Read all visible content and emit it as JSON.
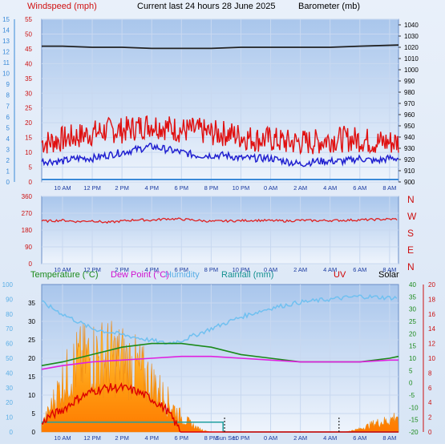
{
  "header": {
    "wind_label": "Windspeed (mph)",
    "title": "Current last 24 hours 28 June 2025",
    "baro_label": "Barometer (mb)"
  },
  "panel3_labels": {
    "temperature": "Temperature (°C)",
    "dew_point": "Dew Point (°C)",
    "humidity": "Humidity",
    "rainfall": "Rainfall (mm)",
    "uv": "UV",
    "solar": "Solar"
  },
  "colors": {
    "wind": "#e01010",
    "wind_avg": "#2020d0",
    "barometer": "#202020",
    "direction": "#e02020",
    "temperature": "#1a8a1a",
    "dew_point": "#e020e0",
    "humidity": "#70c0f0",
    "rainfall": "#20a0a0",
    "uv": "#dd0000",
    "solar": "#f0a020"
  },
  "x_tick_labels": [
    "10 AM",
    "12 PM",
    "2 PM",
    "4 PM",
    "6 PM",
    "8 PM",
    "10 PM",
    "0 AM",
    "2 AM",
    "4 AM",
    "6 AM",
    "8 AM"
  ],
  "sunset_label": "Sun Set",
  "chart_data": [
    {
      "type": "line",
      "panel": "wind-barometer",
      "x_range_hours": [
        8.6,
        32.6
      ],
      "y_left": {
        "label": "Windspeed (mph)",
        "range": [
          0,
          55
        ],
        "ticks": [
          0,
          5,
          10,
          15,
          20,
          25,
          30,
          35,
          40,
          45,
          50,
          55
        ]
      },
      "y_left_beaufort": {
        "range": [
          0,
          15
        ],
        "ticks": [
          0,
          1,
          2,
          3,
          4,
          5,
          6,
          7,
          8,
          9,
          10,
          11,
          12,
          13,
          14,
          15
        ]
      },
      "y_right": {
        "label": "Barometer (mb)",
        "range": [
          900,
          1045
        ],
        "ticks": [
          900,
          910,
          920,
          930,
          940,
          950,
          960,
          970,
          980,
          990,
          1000,
          1010,
          1020,
          1030,
          1040
        ]
      },
      "series": [
        {
          "name": "Windspeed (mph)",
          "axis": "left",
          "x": [
            9,
            10,
            11,
            12,
            13,
            14,
            15,
            16,
            17,
            18,
            19,
            20,
            21,
            22,
            23,
            24,
            25,
            26,
            27,
            28,
            29,
            30,
            31,
            32
          ],
          "values": [
            13,
            14,
            15,
            16,
            17,
            17,
            18,
            19,
            18,
            17,
            17,
            16,
            16,
            15,
            14,
            14,
            13,
            13,
            13,
            14,
            14,
            14,
            13,
            13
          ]
        },
        {
          "name": "",
          "axis": "left",
          "x": [
            9,
            10,
            11,
            12,
            13,
            14,
            15,
            16,
            17,
            18,
            19,
            20,
            21,
            22,
            23,
            24,
            25,
            26,
            27,
            28,
            29,
            30,
            31,
            32
          ],
          "values": [
            7,
            7,
            8,
            8,
            9,
            10,
            11,
            12,
            11,
            10,
            9,
            9,
            9,
            8,
            8,
            8,
            7,
            6,
            7,
            7,
            7,
            8,
            7,
            8
          ]
        },
        {
          "name": "Barometer (mb)",
          "axis": "right",
          "x": [
            8.6,
            10,
            12,
            14,
            16,
            18,
            20,
            22,
            24,
            26,
            28,
            30,
            32.6
          ],
          "values": [
            1021,
            1021,
            1020,
            1020,
            1019,
            1019,
            1019,
            1020,
            1020,
            1020,
            1020,
            1021,
            1022
          ]
        }
      ]
    },
    {
      "type": "line",
      "panel": "wind-direction",
      "x_range_hours": [
        8.6,
        32.6
      ],
      "y_left": {
        "range": [
          0,
          360
        ],
        "ticks": [
          0,
          90,
          180,
          270,
          360
        ]
      },
      "y_right_labels": [
        "N",
        "W",
        "S",
        "E",
        "N"
      ],
      "series": [
        {
          "name": "",
          "x": [
            9,
            10,
            11,
            12,
            13,
            14,
            15,
            16,
            17,
            18,
            19,
            20,
            21,
            22,
            23,
            24,
            25,
            26,
            27,
            28,
            29,
            30,
            31,
            32
          ],
          "values": [
            228,
            232,
            225,
            230,
            220,
            228,
            235,
            232,
            240,
            238,
            232,
            226,
            228,
            230,
            232,
            230,
            228,
            232,
            230,
            231,
            232,
            234,
            236,
            238
          ]
        }
      ]
    },
    {
      "type": "area",
      "panel": "temperature-rain-solar",
      "x_range_hours": [
        8.6,
        32.6
      ],
      "y_left": {
        "range": [
          0,
          40
        ],
        "ticks": [
          0,
          5,
          10,
          15,
          20,
          25,
          30,
          35
        ]
      },
      "y_left_humidity": {
        "range": [
          0,
          100
        ],
        "ticks": [
          0,
          10,
          20,
          30,
          40,
          50,
          60,
          70,
          80,
          90,
          100
        ]
      },
      "y_right_rain": {
        "range": [
          -20,
          40
        ],
        "ticks": [
          -20,
          -15,
          -10,
          -5,
          0,
          5,
          10,
          15,
          20,
          25,
          30,
          35,
          40
        ]
      },
      "y_right_uv": {
        "range": [
          0,
          20
        ],
        "ticks": [
          0,
          2,
          4,
          6,
          8,
          10,
          12,
          14,
          16,
          18,
          20
        ]
      },
      "series": [
        {
          "name": "Temperature (°C)",
          "axis": "left",
          "x": [
            8.6,
            10,
            12,
            14,
            16,
            17,
            18,
            20,
            22,
            24,
            26,
            28,
            30,
            32,
            32.6
          ],
          "values": [
            18,
            19,
            21,
            23,
            24,
            24,
            24,
            23,
            21,
            20,
            19,
            19,
            19,
            20,
            20.5
          ]
        },
        {
          "name": "Dew Point (°C)",
          "axis": "left",
          "x": [
            8.6,
            10,
            12,
            14,
            16,
            18,
            20,
            22,
            24,
            26,
            28,
            30,
            32,
            32.6
          ],
          "values": [
            17,
            18,
            19,
            19.5,
            20,
            20.5,
            20.5,
            20,
            19.5,
            19,
            19,
            19,
            19.5,
            19.5
          ]
        },
        {
          "name": "Humidity",
          "axis": "left-humidity",
          "x": [
            8.6,
            10,
            12,
            14,
            16,
            17,
            18,
            20,
            22,
            24,
            26,
            28,
            30,
            32,
            32.6
          ],
          "values": [
            88,
            80,
            70,
            66,
            62,
            60,
            62,
            70,
            78,
            84,
            88,
            90,
            92,
            91,
            91
          ]
        },
        {
          "name": "Rainfall (mm)",
          "axis": "right-rain",
          "x": [
            8.6,
            20.8,
            20.8,
            24.2,
            24.2,
            32.6
          ],
          "values": [
            -16,
            -16,
            -20,
            -20,
            -20,
            -20
          ]
        },
        {
          "name": "UV",
          "axis": "right-uv",
          "x": [
            8.6,
            9,
            10,
            11,
            12,
            13,
            14,
            15,
            16,
            17,
            17.5,
            18,
            32.6
          ],
          "values": [
            1,
            2,
            3,
            4.5,
            5.5,
            6,
            6,
            5.5,
            4.5,
            3,
            1.5,
            0,
            0
          ]
        },
        {
          "name": "Solar",
          "axis": "left",
          "x": [
            8.6,
            9,
            10,
            11,
            12,
            13,
            14,
            15,
            16,
            17,
            18,
            19,
            19.5,
            20,
            21,
            22,
            24,
            26,
            28,
            29,
            30,
            31,
            32,
            32.6
          ],
          "values": [
            2,
            6,
            17,
            24,
            26,
            26,
            25,
            22,
            17,
            11,
            5,
            1.5,
            0.5,
            0,
            0,
            0,
            0,
            0,
            0,
            0,
            1,
            3,
            4,
            6
          ]
        }
      ]
    }
  ]
}
